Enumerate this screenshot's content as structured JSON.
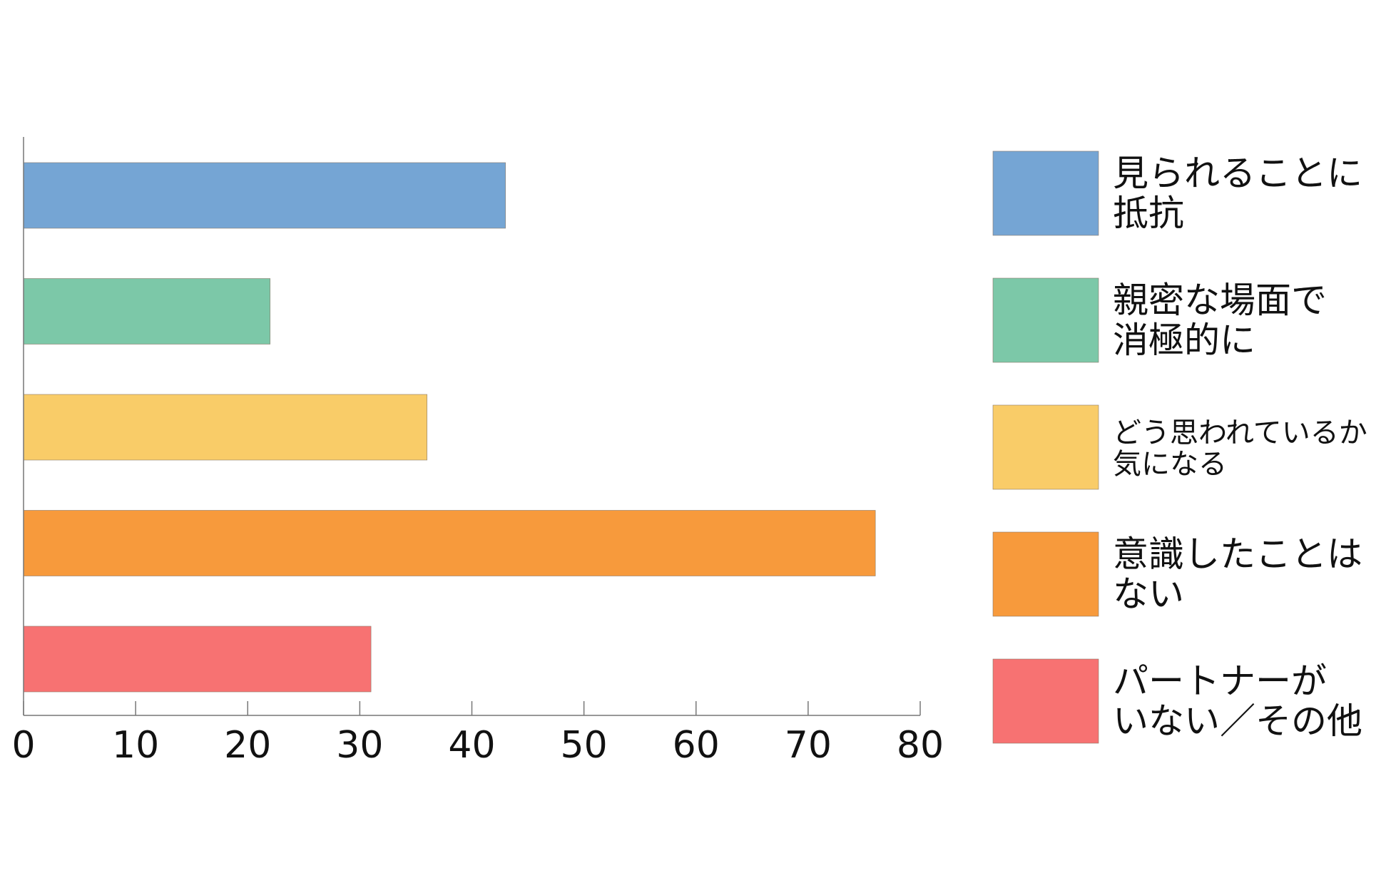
{
  "chart_data": {
    "type": "bar",
    "orientation": "horizontal",
    "title": "",
    "xlabel": "",
    "ylabel": "",
    "xlim": [
      0,
      80
    ],
    "xticks": [
      0,
      10,
      20,
      30,
      40,
      50,
      60,
      70,
      80
    ],
    "grid": false,
    "legend_position": "right",
    "categories": [
      [
        "見られることに",
        "抵抗"
      ],
      [
        "親密な場面で",
        "消極的に"
      ],
      [
        "どう思われているか",
        "気になる"
      ],
      [
        "意識したことは",
        "ない"
      ],
      [
        "パートナーが",
        "いない／その他"
      ]
    ],
    "values": [
      43,
      22,
      36,
      76,
      31
    ],
    "colors": [
      "#75a5d4",
      "#7cc8a8",
      "#f9cc68",
      "#f79a3c",
      "#f77272"
    ]
  }
}
